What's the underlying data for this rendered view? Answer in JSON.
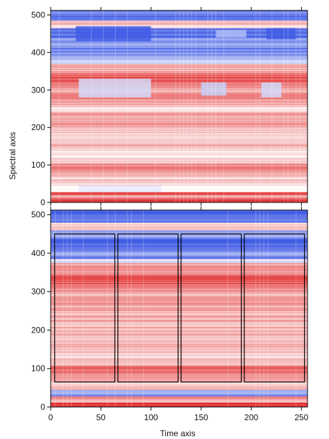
{
  "figure": {
    "ylabel": "Spectral axis",
    "xlabel": "Time axis"
  },
  "chart_data": [
    {
      "type": "heatmap",
      "panel": "top",
      "xlabel": "",
      "ylabel": "Spectral axis",
      "xlim": [
        0,
        256
      ],
      "ylim": [
        0,
        512
      ],
      "x_ticks": [
        0,
        50,
        100,
        150,
        200,
        250
      ],
      "x_tick_labels_shown": false,
      "y_ticks": [
        0,
        100,
        200,
        300,
        400,
        500
      ],
      "y_tick_labels": [
        "0",
        "100",
        "200",
        "300",
        "400",
        "500"
      ],
      "colormap": {
        "negative": "#2040e0",
        "zero": "#ffffff",
        "positive": "#e02020"
      },
      "bands": [
        {
          "y": [
            0,
            12
          ],
          "value": 0.85
        },
        {
          "y": [
            12,
            20
          ],
          "value": 0.35
        },
        {
          "y": [
            20,
            28
          ],
          "value": 0.75
        },
        {
          "y": [
            28,
            45
          ],
          "value": 0.15
        },
        {
          "y": [
            45,
            70
          ],
          "value": 0.2
        },
        {
          "y": [
            70,
            85
          ],
          "value": 0.3
        },
        {
          "y": [
            85,
            105
          ],
          "value": 0.6
        },
        {
          "y": [
            105,
            140
          ],
          "value": 0.15
        },
        {
          "y": [
            140,
            170
          ],
          "value": 0.3
        },
        {
          "y": [
            170,
            200
          ],
          "value": 0.2
        },
        {
          "y": [
            200,
            240
          ],
          "value": 0.4
        },
        {
          "y": [
            240,
            260
          ],
          "value": 0.2
        },
        {
          "y": [
            260,
            300
          ],
          "value": 0.45
        },
        {
          "y": [
            300,
            320
          ],
          "value": 0.55
        },
        {
          "y": [
            320,
            345
          ],
          "value": 0.75
        },
        {
          "y": [
            345,
            370
          ],
          "value": 0.35
        },
        {
          "y": [
            370,
            380
          ],
          "value": -0.15
        },
        {
          "y": [
            380,
            400
          ],
          "value": -0.45
        },
        {
          "y": [
            400,
            420
          ],
          "value": -0.65
        },
        {
          "y": [
            420,
            440
          ],
          "value": -0.55
        },
        {
          "y": [
            440,
            465
          ],
          "value": -0.75
        },
        {
          "y": [
            465,
            485
          ],
          "value": 0.2
        },
        {
          "y": [
            485,
            512
          ],
          "value": -0.7
        }
      ],
      "patches": [
        {
          "x": [
            28,
            110
          ],
          "y": [
            28,
            45
          ],
          "value": -0.75
        },
        {
          "x": [
            0,
            256
          ],
          "y": [
            28,
            45
          ],
          "value": 0.0
        },
        {
          "x": [
            28,
            100
          ],
          "y": [
            280,
            330
          ],
          "value": -0.2
        },
        {
          "x": [
            150,
            175
          ],
          "y": [
            285,
            320
          ],
          "value": -0.25
        },
        {
          "x": [
            210,
            230
          ],
          "y": [
            280,
            320
          ],
          "value": -0.2
        },
        {
          "x": [
            25,
            100
          ],
          "y": [
            430,
            470
          ],
          "value": -0.85
        },
        {
          "x": [
            165,
            195
          ],
          "y": [
            440,
            460
          ],
          "value": -0.35
        },
        {
          "x": [
            215,
            245
          ],
          "y": [
            435,
            465
          ],
          "value": -0.85
        }
      ]
    },
    {
      "type": "heatmap",
      "panel": "bottom",
      "xlabel": "Time axis",
      "ylabel": "",
      "xlim": [
        0,
        256
      ],
      "ylim": [
        0,
        512
      ],
      "x_ticks": [
        0,
        50,
        100,
        150,
        200,
        250
      ],
      "x_tick_labels": [
        "0",
        "50",
        "100",
        "150",
        "200",
        "250"
      ],
      "y_ticks": [
        0,
        100,
        200,
        300,
        400,
        500
      ],
      "y_tick_labels": [
        "0",
        "100",
        "200",
        "300",
        "400",
        "500"
      ],
      "colormap": {
        "negative": "#2040e0",
        "zero": "#ffffff",
        "positive": "#e02020"
      },
      "bands": [
        {
          "y": [
            0,
            12
          ],
          "value": 0.85
        },
        {
          "y": [
            12,
            20
          ],
          "value": 0.35
        },
        {
          "y": [
            20,
            28
          ],
          "value": 0.7
        },
        {
          "y": [
            28,
            45
          ],
          "value": -0.5
        },
        {
          "y": [
            45,
            65
          ],
          "value": 0.2
        },
        {
          "y": [
            65,
            90
          ],
          "value": 0.4
        },
        {
          "y": [
            90,
            110
          ],
          "value": 0.6
        },
        {
          "y": [
            110,
            150
          ],
          "value": 0.2
        },
        {
          "y": [
            150,
            200
          ],
          "value": 0.3
        },
        {
          "y": [
            200,
            250
          ],
          "value": 0.35
        },
        {
          "y": [
            250,
            300
          ],
          "value": 0.4
        },
        {
          "y": [
            300,
            320
          ],
          "value": 0.55
        },
        {
          "y": [
            320,
            345
          ],
          "value": 0.75
        },
        {
          "y": [
            345,
            375
          ],
          "value": 0.4
        },
        {
          "y": [
            375,
            385
          ],
          "value": -0.1
        },
        {
          "y": [
            385,
            410
          ],
          "value": -0.55
        },
        {
          "y": [
            410,
            440
          ],
          "value": -0.7
        },
        {
          "y": [
            440,
            460
          ],
          "value": -0.5
        },
        {
          "y": [
            460,
            480
          ],
          "value": 0.15
        },
        {
          "y": [
            480,
            512
          ],
          "value": -0.7
        }
      ],
      "patches": [],
      "rectangles": [
        {
          "x": [
            4,
            64
          ],
          "y": [
            65,
            450
          ]
        },
        {
          "x": [
            67,
            127
          ],
          "y": [
            65,
            450
          ]
        },
        {
          "x": [
            130,
            190
          ],
          "y": [
            65,
            450
          ]
        },
        {
          "x": [
            193,
            253
          ],
          "y": [
            65,
            450
          ]
        }
      ]
    }
  ]
}
